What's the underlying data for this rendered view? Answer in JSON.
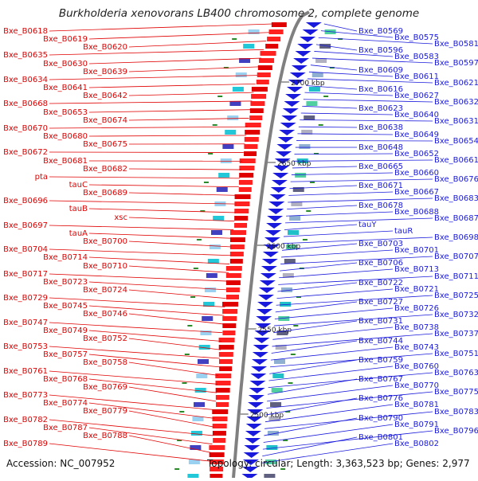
{
  "header": {
    "title": "Burkholderia xenovorans LB400 chromosome 2, complete genome"
  },
  "footer": {
    "accession": "Accession: NC_007952",
    "topology": "Topology: circular; Length: 3,363,523 bp; Genes: 2,977"
  },
  "colors": {
    "forward": "#e00000",
    "reverse": "#1a1adc",
    "backbone": "#808080",
    "tick": "#2a8a2a"
  },
  "ruler": [
    "2700 kbp",
    "2650 kbp",
    "2600 kbp",
    "2550 kbp",
    "2500 kbp"
  ],
  "forward_labels": [
    "Bxe_B0618",
    "Bxe_B0619",
    "Bxe_B0620",
    "Bxe_B0635",
    "Bxe_B0630",
    "Bxe_B0639",
    "Bxe_B0634",
    "Bxe_B0641",
    "Bxe_B0642",
    "Bxe_B0668",
    "Bxe_B0653",
    "Bxe_B0674",
    "Bxe_B0670",
    "Bxe_B0680",
    "Bxe_B0675",
    "Bxe_B0672",
    "Bxe_B0681",
    "Bxe_B0682",
    "pta",
    "tauC",
    "Bxe_B0689",
    "Bxe_B0696",
    "tauB",
    "xsc",
    "Bxe_B0697",
    "tauA",
    "Bxe_B0700",
    "Bxe_B0704",
    "Bxe_B0714",
    "Bxe_B0710",
    "Bxe_B0717",
    "Bxe_B0723",
    "Bxe_B0724",
    "Bxe_B0729",
    "Bxe_B0745",
    "Bxe_B0746",
    "Bxe_B0747",
    "Bxe_B0749",
    "Bxe_B0752",
    "Bxe_B0753",
    "Bxe_B0757",
    "Bxe_B0758",
    "Bxe_B0761",
    "Bxe_B0768",
    "Bxe_B0769",
    "Bxe_B0773",
    "Bxe_B0774",
    "Bxe_B0779",
    "Bxe_B0782",
    "Bxe_B0787",
    "Bxe_B0788",
    "Bxe_B0789"
  ],
  "reverse_labels": [
    "Bxe_B0569",
    "Bxe_B0575",
    "Bxe_B0581",
    "Bxe_B0596",
    "Bxe_B0583",
    "Bxe_B0597",
    "Bxe_B0609",
    "Bxe_B0611",
    "Bxe_B0621",
    "Bxe_B0616",
    "Bxe_B0627",
    "Bxe_B0632",
    "Bxe_B0623",
    "Bxe_B0640",
    "Bxe_B0631",
    "Bxe_B0638",
    "Bxe_B0649",
    "Bxe_B0654",
    "Bxe_B0648",
    "Bxe_B0652",
    "Bxe_B0661",
    "Bxe_B0665",
    "Bxe_B0660",
    "Bxe_B0676",
    "Bxe_B0671",
    "Bxe_B0667",
    "Bxe_B0683",
    "Bxe_B0678",
    "Bxe_B0688",
    "Bxe_B0687",
    "tauY",
    "tauR",
    "Bxe_B0698",
    "Bxe_B0703",
    "Bxe_B0701",
    "Bxe_B0707",
    "Bxe_B0706",
    "Bxe_B0713",
    "Bxe_B0711",
    "Bxe_B0722",
    "Bxe_B0721",
    "Bxe_B0725",
    "Bxe_B0727",
    "Bxe_B0726",
    "Bxe_B0732",
    "Bxe_B0731",
    "Bxe_B0738",
    "Bxe_B0737",
    "Bxe_B0744",
    "Bxe_B0743",
    "Bxe_B0751",
    "Bxe_B0759",
    "Bxe_B0760",
    "Bxe_B0763",
    "Bxe_B0767",
    "Bxe_B0770",
    "Bxe_B0775",
    "Bxe_B0776",
    "Bxe_B0781",
    "Bxe_B0783",
    "Bxe_B0790",
    "Bxe_B0791",
    "Bxe_B0796",
    "Bxe_B0801",
    "Bxe_B0802"
  ]
}
